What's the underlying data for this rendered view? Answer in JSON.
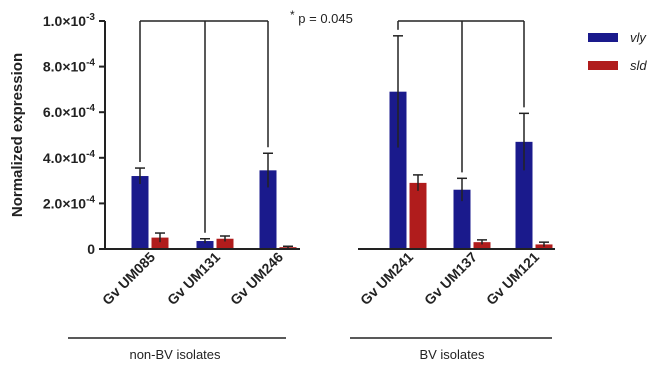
{
  "chart_data": {
    "type": "bar",
    "ylabel": "Normalized expression",
    "ylim": [
      0,
      0.001
    ],
    "yticks": [
      {
        "value": 0,
        "label": "0"
      },
      {
        "value": 0.0002,
        "label": "2.0×10",
        "exp": "-4"
      },
      {
        "value": 0.0004,
        "label": "4.0×10",
        "exp": "-4"
      },
      {
        "value": 0.0006,
        "label": "6.0×10",
        "exp": "-4"
      },
      {
        "value": 0.0008,
        "label": "8.0×10",
        "exp": "-4"
      },
      {
        "value": 0.001,
        "label": "1.0×10",
        "exp": "-3"
      }
    ],
    "categories": [
      "Gv UM085",
      "Gv UM131",
      "Gv UM246",
      "Gv UM241",
      "Gv UM137",
      "Gv UM121"
    ],
    "series": [
      {
        "name": "vly",
        "color": "#1a1a8c",
        "values": [
          0.00032,
          3.5e-05,
          0.000345,
          0.00069,
          0.00026,
          0.00047
        ],
        "errors": [
          3.5e-05,
          1e-05,
          7.5e-05,
          0.000245,
          5e-05,
          0.000125
        ]
      },
      {
        "name": "sld",
        "color": "#b01c1c",
        "values": [
          5e-05,
          4.5e-05,
          8e-06,
          0.00029,
          3e-05,
          2e-05
        ],
        "errors": [
          2e-05,
          1.2e-05,
          4e-06,
          3.5e-05,
          1e-05,
          1e-05
        ]
      }
    ],
    "groups": [
      {
        "label": "non-BV isolates",
        "categories": [
          0,
          1,
          2
        ]
      },
      {
        "label": "BV isolates",
        "categories": [
          3,
          4,
          5
        ]
      }
    ],
    "annotation": {
      "star": "*",
      "text": "p = 0.045"
    },
    "legend": "top-right",
    "grid": false
  }
}
